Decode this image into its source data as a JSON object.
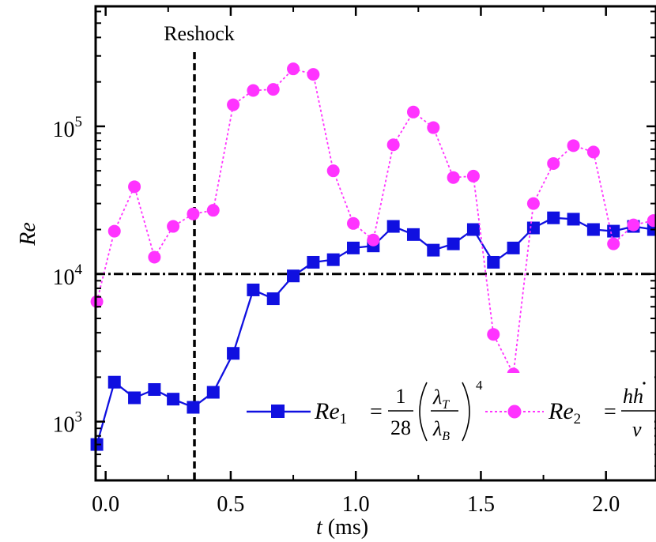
{
  "chart_data": {
    "type": "line",
    "title": "",
    "xlabel_symbol": "t",
    "xlabel_unit": "(ms)",
    "ylabel": "Re",
    "xlim": [
      -0.04,
      2.2
    ],
    "ylim": [
      400,
      650000
    ],
    "yscale": "log",
    "x_ticks": [
      0.0,
      0.5,
      1.0,
      1.5,
      2.0
    ],
    "x_tick_labels": [
      "0.0",
      "0.5",
      "1.0",
      "1.5",
      "2.0"
    ],
    "y_ticks": [
      1000,
      10000,
      100000
    ],
    "y_tick_labels": [
      {
        "base": "10",
        "exp": "3"
      },
      {
        "base": "10",
        "exp": "4"
      },
      {
        "base": "10",
        "exp": "5"
      }
    ],
    "reference_lines": [
      {
        "orientation": "vertical",
        "x": 0.355,
        "style": "dashed",
        "label": "Reshock"
      },
      {
        "orientation": "horizontal",
        "y": 10000,
        "style": "dash-dot"
      }
    ],
    "series": [
      {
        "name": "Re1",
        "color": "#1010e0",
        "marker": "square",
        "line": "solid",
        "x": [
          -0.035,
          0.035,
          0.115,
          0.195,
          0.27,
          0.35,
          0.43,
          0.51,
          0.59,
          0.67,
          0.75,
          0.83,
          0.91,
          0.99,
          1.07,
          1.15,
          1.23,
          1.31,
          1.39,
          1.47,
          1.55,
          1.63,
          1.71,
          1.79,
          1.87,
          1.95,
          2.03,
          2.11,
          2.19
        ],
        "y": [
          700,
          1850,
          1450,
          1650,
          1420,
          1250,
          1580,
          2900,
          7800,
          6800,
          9700,
          12000,
          12500,
          15000,
          15500,
          21000,
          18500,
          14500,
          16000,
          20000,
          12000,
          15000,
          20500,
          24000,
          23500,
          20000,
          19500,
          21000,
          20000
        ]
      },
      {
        "name": "Re2",
        "color": "#ff33ff",
        "marker": "circle",
        "line": "dotted",
        "x": [
          -0.035,
          0.035,
          0.115,
          0.195,
          0.27,
          0.35,
          0.43,
          0.51,
          0.59,
          0.67,
          0.75,
          0.83,
          0.91,
          0.99,
          1.07,
          1.15,
          1.23,
          1.31,
          1.39,
          1.47,
          1.55,
          1.63,
          1.71,
          1.79,
          1.87,
          1.95,
          2.03,
          2.11,
          2.19
        ],
        "y": [
          6500,
          19500,
          39000,
          13000,
          21000,
          25500,
          27000,
          140000,
          175000,
          178000,
          245000,
          225000,
          50000,
          22000,
          17000,
          75000,
          125000,
          98000,
          45000,
          46000,
          3900,
          2100,
          30000,
          56000,
          74000,
          67000,
          16000,
          21500,
          23000
        ]
      }
    ],
    "legend": {
      "placement": "bottom-right",
      "entries": [
        {
          "series": "Re1",
          "lhs_sym": "Re",
          "lhs_sub": "1",
          "num": "1",
          "den": "28",
          "frac_num_sym": "λ",
          "frac_num_sub": "T",
          "frac_den_sym": "λ",
          "frac_den_sub": "B",
          "power": "4"
        },
        {
          "series": "Re2",
          "lhs_sym": "Re",
          "lhs_sub": "2",
          "num_a": "h",
          "num_b": "h",
          "den": "ν"
        }
      ]
    }
  }
}
